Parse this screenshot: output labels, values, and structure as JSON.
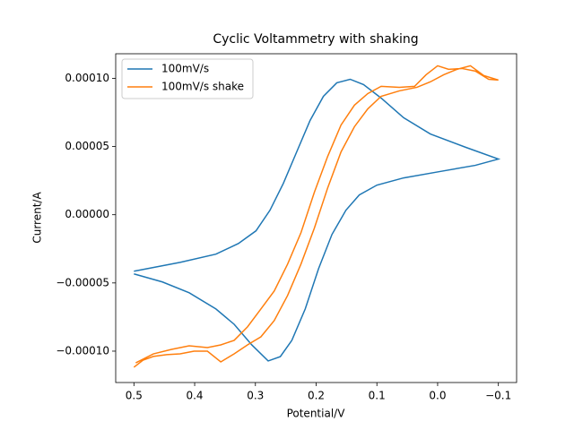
{
  "chart_data": {
    "type": "line",
    "title": "Cyclic Voltammetry with shaking",
    "x_label": "Potential/V",
    "y_label": "Current/A",
    "xlim": [
      0.53,
      -0.13
    ],
    "ylim": [
      -0.000123,
      0.000118
    ],
    "xticks": [
      0.5,
      0.4,
      0.3,
      0.2,
      0.1,
      {
        "value": 0.0,
        "label": "0.0"
      },
      {
        "value": -0.1,
        "label": "−0.1"
      }
    ],
    "yticks": [
      {
        "value": 0.0001,
        "label": "0.00010"
      },
      {
        "value": 5e-05,
        "label": "0.00005"
      },
      {
        "value": 0,
        "label": "0.00000"
      },
      {
        "value": -5e-05,
        "label": "−0.00005"
      },
      {
        "value": -0.0001,
        "label": "−0.00010"
      }
    ],
    "legend": "upper left",
    "series": [
      {
        "name": "100mV/s",
        "color": "#1f77b4",
        "x": [
          0.5,
          0.453,
          0.409,
          0.365,
          0.335,
          0.306,
          0.279,
          0.259,
          0.24,
          0.218,
          0.196,
          0.174,
          0.151,
          0.129,
          0.1,
          0.056,
          -0.003,
          -0.062,
          -0.1,
          -0.047,
          0.012,
          0.056,
          0.093,
          0.122,
          0.144,
          0.166,
          0.188,
          0.21,
          0.232,
          0.254,
          0.276,
          0.299,
          0.328,
          0.365,
          0.424,
          0.5
        ],
        "values": [
          -4.34e-05,
          -4.93e-05,
          -5.72e-05,
          -6.91e-05,
          -8.03e-05,
          -9.54e-05,
          -0.0001072,
          -0.000104,
          -9.21e-05,
          -6.91e-05,
          -3.95e-05,
          -1.45e-05,
          3.3e-06,
          1.45e-05,
          2.17e-05,
          2.7e-05,
          3.16e-05,
          3.62e-05,
          4.08e-05,
          4.93e-05,
          5.92e-05,
          7.11e-05,
          8.55e-05,
          9.54e-05,
          9.93e-05,
          9.67e-05,
          8.68e-05,
          6.91e-05,
          4.61e-05,
          2.3e-05,
          3.3e-06,
          -1.18e-05,
          -2.11e-05,
          -2.89e-05,
          -3.49e-05,
          -4.14e-05
        ]
      },
      {
        "name": "100mV/s shake",
        "color": "#ff7f0e",
        "x": [
          0.5,
          0.485,
          0.468,
          0.446,
          0.424,
          0.401,
          0.379,
          0.357,
          0.335,
          0.313,
          0.291,
          0.269,
          0.247,
          0.225,
          0.203,
          0.181,
          0.159,
          0.137,
          0.115,
          0.093,
          0.063,
          0.034,
          0.012,
          -0.01,
          -0.032,
          -0.054,
          -0.076,
          -0.1,
          -0.084,
          -0.062,
          -0.04,
          -0.018,
          0.0,
          0.019,
          0.038,
          0.063,
          0.093,
          0.115,
          0.137,
          0.159,
          0.181,
          0.203,
          0.225,
          0.247,
          0.269,
          0.291,
          0.313,
          0.335,
          0.357,
          0.379,
          0.409,
          0.438,
          0.468,
          0.497
        ],
        "values": [
          -0.0001118,
          -0.0001066,
          -0.0001039,
          -0.0001026,
          -0.000102,
          -0.0001,
          -0.0001,
          -0.0001079,
          -0.000102,
          -9.54e-05,
          -8.95e-05,
          -7.76e-05,
          -5.92e-05,
          -3.62e-05,
          -9.9e-06,
          1.97e-05,
          4.61e-05,
          6.45e-05,
          7.76e-05,
          8.68e-05,
          9.08e-05,
          9.34e-05,
          9.74e-05,
          0.0001026,
          0.0001066,
          0.0001092,
          0.000102,
          9.87e-05,
          9.93e-05,
          0.0001053,
          0.0001072,
          0.0001066,
          0.0001092,
          0.0001026,
          9.41e-05,
          9.34e-05,
          9.41e-05,
          8.88e-05,
          8.03e-05,
          6.58e-05,
          4.28e-05,
          1.64e-05,
          -1.32e-05,
          -3.62e-05,
          -5.59e-05,
          -6.91e-05,
          -8.22e-05,
          -9.21e-05,
          -9.54e-05,
          -9.74e-05,
          -9.61e-05,
          -9.87e-05,
          -0.000102,
          -0.0001086
        ]
      }
    ]
  }
}
